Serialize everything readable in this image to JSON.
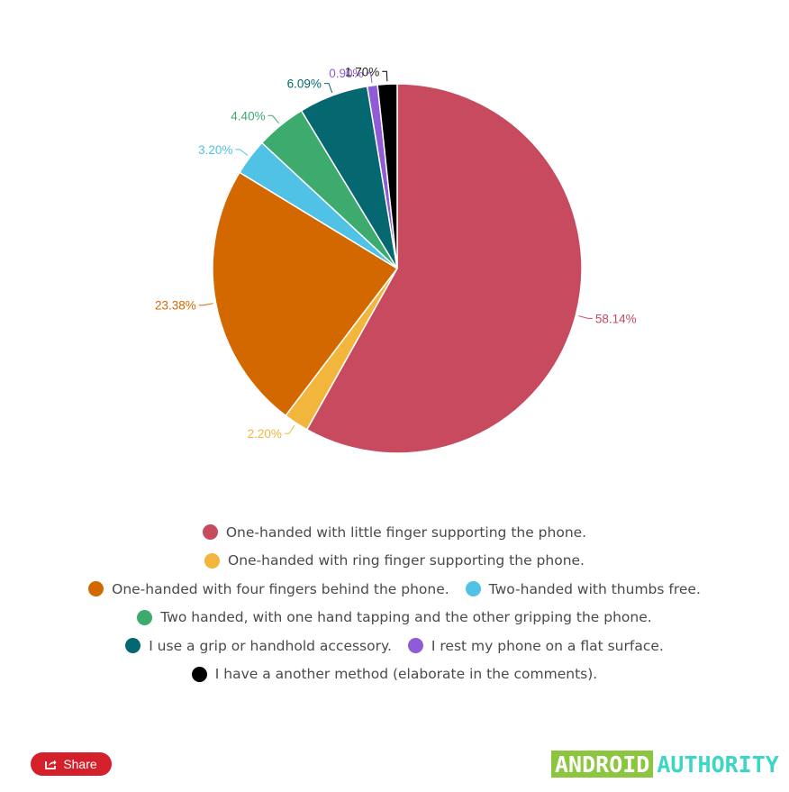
{
  "chart_data": {
    "type": "pie",
    "series": [
      {
        "name": "One-handed with little finger supporting the phone.",
        "value": 58.14,
        "label": "58.14%",
        "color": "#c84a5f"
      },
      {
        "name": "One-handed with ring finger supporting the phone.",
        "value": 2.2,
        "label": "2.20%",
        "color": "#f1b63b"
      },
      {
        "name": "One-handed with four fingers behind the phone.",
        "value": 23.38,
        "label": "23.38%",
        "color": "#d46800"
      },
      {
        "name": "Two-handed with thumbs free.",
        "value": 3.2,
        "label": "3.20%",
        "color": "#4fc2e6"
      },
      {
        "name": "Two handed, with one hand tapping and the other gripping the phone.",
        "value": 4.4,
        "label": "4.40%",
        "color": "#3daa6e"
      },
      {
        "name": "I use a grip or handhold accessory.",
        "value": 6.09,
        "label": "6.09%",
        "color": "#05676f"
      },
      {
        "name": "I rest my phone on a flat surface.",
        "value": 0.9,
        "label": "0.90%",
        "color": "#8f5bd6"
      },
      {
        "name": "I have a another method (elaborate in the comments).",
        "value": 1.7,
        "label": "1.70%",
        "color": "#000000"
      }
    ],
    "legend_placement": "bottom"
  },
  "legend_rows": [
    [
      0
    ],
    [
      1
    ],
    [
      2,
      3
    ],
    [
      4
    ],
    [
      5,
      6
    ],
    [
      7
    ]
  ],
  "footer": {
    "share_label": "Share",
    "share_icon": "share-icon",
    "logo_part1": "ANDROID",
    "logo_part2": "AUTHORITY"
  }
}
